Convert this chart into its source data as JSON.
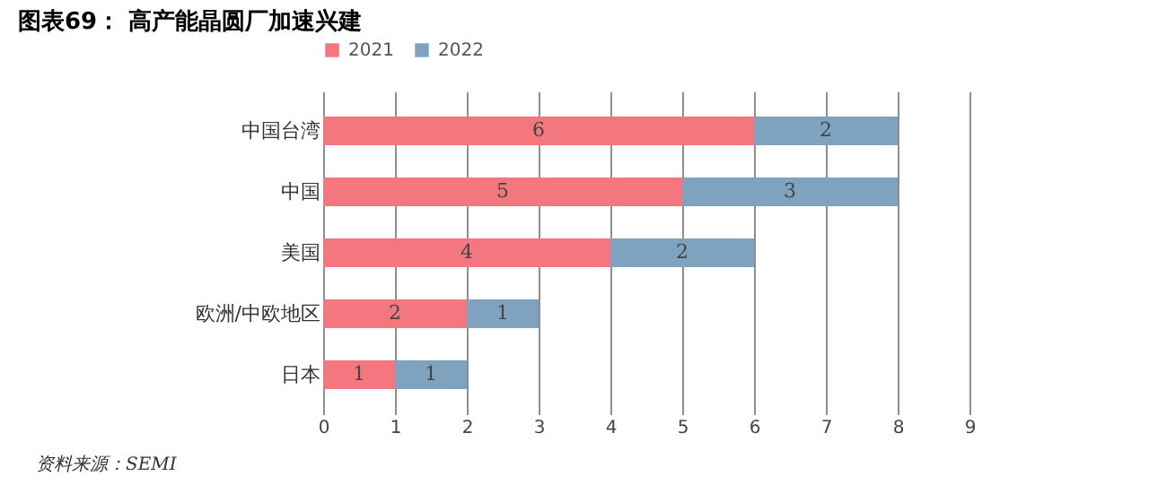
{
  "chart_data": {
    "type": "bar",
    "orientation": "horizontal",
    "stacked": true,
    "title": "图表69：  高产能晶圆厂加速兴建",
    "categories": [
      "中国台湾",
      "中国",
      "美国",
      "欧洲/中欧地区",
      "日本"
    ],
    "series": [
      {
        "name": "2021",
        "color": "#f4777f",
        "values": [
          6,
          5,
          4,
          2,
          1
        ]
      },
      {
        "name": "2022",
        "color": "#7fa2bf",
        "values": [
          2,
          3,
          2,
          1,
          1
        ]
      }
    ],
    "xlim": [
      0,
      9
    ],
    "xticks": [
      0,
      1,
      2,
      3,
      4,
      5,
      6,
      7,
      8,
      9
    ],
    "grid": "x",
    "legend": "top",
    "data_labels": true,
    "annotations": [
      "资料来源：SEMI"
    ]
  }
}
